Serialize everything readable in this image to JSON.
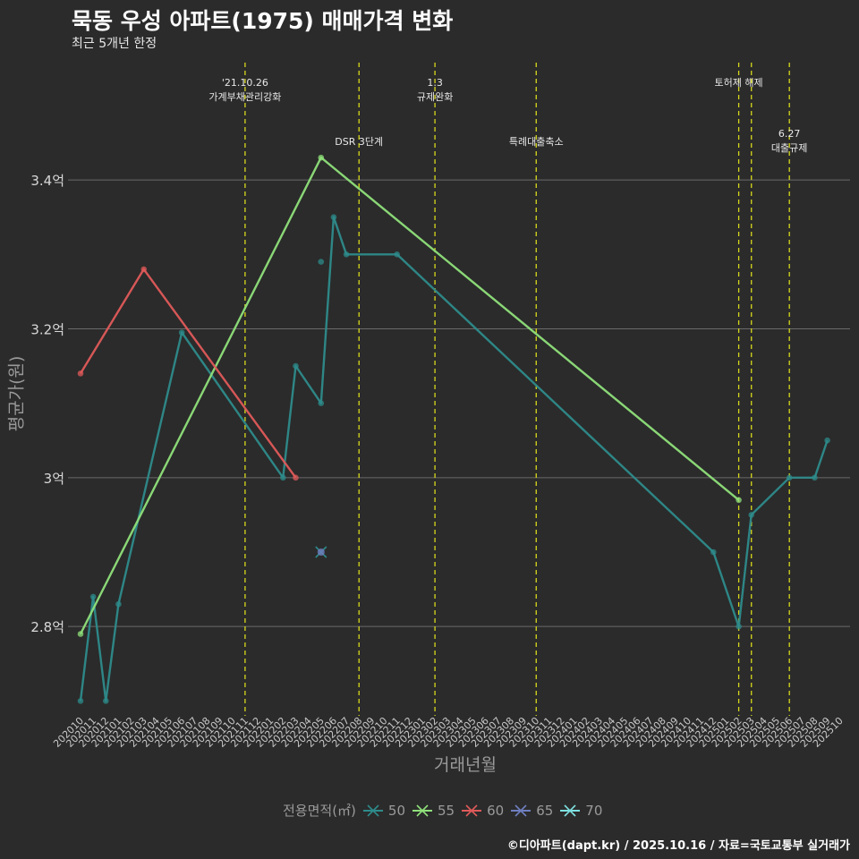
{
  "header": {
    "title": "묵동 우성 아파트(1975) 매매가격 변화",
    "subtitle": "최근 5개년 한정"
  },
  "footer": {
    "caption": "©디아파트(dapt.kr) / 2025.10.16 / 자료=국토교통부 실거래가"
  },
  "legend": {
    "title": "전용면적(㎡)",
    "items": [
      {
        "label": "50",
        "color": "#2e8b8b"
      },
      {
        "label": "55",
        "color": "#8fe07a"
      },
      {
        "label": "60",
        "color": "#e05a5a"
      },
      {
        "label": "65",
        "color": "#6f7fc0"
      },
      {
        "label": "70",
        "color": "#7fe0e0"
      }
    ]
  },
  "chart_data": {
    "type": "line",
    "title": "묵동 우성 아파트(1975) 매매가격 변화",
    "xlabel": "거래년월",
    "ylabel": "평균가(원)",
    "ylim": [
      2.68,
      3.56
    ],
    "yticks": [
      {
        "value": 2.8,
        "label": "2.8억"
      },
      {
        "value": 3.0,
        "label": "3억"
      },
      {
        "value": 3.2,
        "label": "3.2억"
      },
      {
        "value": 3.4,
        "label": "3.4억"
      }
    ],
    "categories": [
      "202010",
      "202011",
      "202012",
      "202101",
      "202102",
      "202103",
      "202104",
      "202105",
      "202106",
      "202107",
      "202108",
      "202109",
      "202110",
      "202111",
      "202112",
      "202201",
      "202202",
      "202203",
      "202204",
      "202205",
      "202206",
      "202207",
      "202208",
      "202209",
      "202210",
      "202211",
      "202212",
      "202301",
      "202302",
      "202303",
      "202304",
      "202305",
      "202306",
      "202307",
      "202308",
      "202309",
      "202310",
      "202311",
      "202312",
      "202401",
      "202402",
      "202403",
      "202404",
      "202405",
      "202406",
      "202407",
      "202408",
      "202409",
      "202410",
      "202411",
      "202412",
      "202501",
      "202502",
      "202503",
      "202504",
      "202505",
      "202506",
      "202507",
      "202508",
      "202509",
      "202510"
    ],
    "series": [
      {
        "name": "50",
        "color": "#2e8b8b",
        "points": [
          [
            "202010",
            2.7
          ],
          [
            "202011",
            2.84
          ],
          [
            "202012",
            2.7
          ],
          [
            "202101",
            2.83
          ],
          [
            "202106",
            3.195
          ],
          [
            "202202",
            3.0
          ],
          [
            "202203",
            3.15
          ],
          [
            "202205",
            3.1
          ],
          [
            "202206",
            3.35
          ],
          [
            "202207",
            3.3
          ],
          [
            "202211",
            3.3
          ],
          [
            "202412",
            2.9
          ],
          [
            "202502",
            2.8
          ],
          [
            "202503",
            2.95
          ],
          [
            "202506",
            3.0
          ],
          [
            "202508",
            3.0
          ],
          [
            "202509",
            3.05
          ]
        ],
        "extra_points": [
          [
            "202205",
            3.29
          ]
        ]
      },
      {
        "name": "55",
        "color": "#8fe07a",
        "points": [
          [
            "202010",
            2.79
          ],
          [
            "202205",
            3.43
          ],
          [
            "202502",
            2.97
          ]
        ]
      },
      {
        "name": "60",
        "color": "#e05a5a",
        "points": [
          [
            "202010",
            3.14
          ],
          [
            "202103",
            3.28
          ],
          [
            "202203",
            3.0
          ]
        ]
      },
      {
        "name": "65",
        "color": "#6f7fc0",
        "points": [
          [
            "202205",
            2.9
          ]
        ]
      },
      {
        "name": "70",
        "color": "#7fe0e0",
        "points": []
      }
    ],
    "events": [
      {
        "month": "202111",
        "lines": [
          "'21.10.26",
          "가계부채관리강화"
        ],
        "row": 0
      },
      {
        "month": "202208",
        "lines": [
          "DSR 3단계"
        ],
        "row": 1
      },
      {
        "month": "202302",
        "lines": [
          "1.3",
          "규제완화"
        ],
        "row": 0
      },
      {
        "month": "202310",
        "lines": [
          "특례대출축소"
        ],
        "row": 1
      },
      {
        "month": "202502",
        "lines": [
          "토허제 해제"
        ],
        "row": 0
      },
      {
        "month": "202503",
        "lines": [],
        "row": 0
      },
      {
        "month": "202506",
        "lines": [
          "6.27",
          "대출규제"
        ],
        "row": 2
      }
    ]
  }
}
